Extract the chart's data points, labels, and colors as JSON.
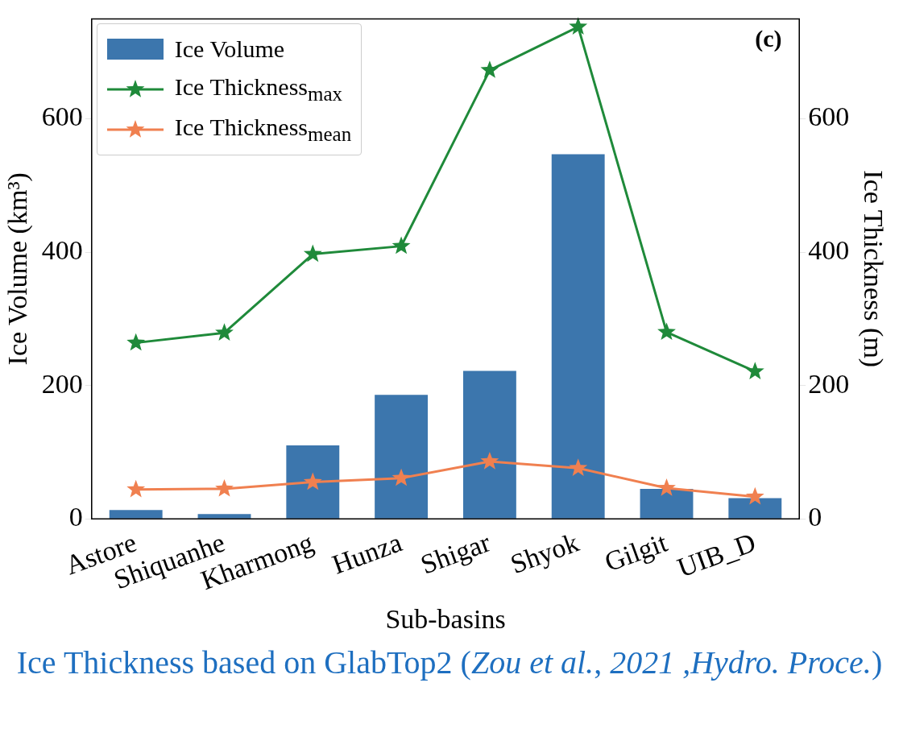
{
  "chart_data": {
    "type": "bar",
    "xlabel": "Sub-basins",
    "ylabel": "Ice Volume (km³)",
    "y2label": "Ice Thickness (m)",
    "categories": [
      "Astore",
      "Shiquanhe",
      "Kharmong",
      "Hunza",
      "Shigar",
      "Shyok",
      "Gilgit",
      "UIB_D"
    ],
    "series": [
      {
        "name": "Ice Volume",
        "color": "#3c76ad",
        "values": [
          13,
          7,
          110,
          186,
          222,
          547,
          45,
          31
        ]
      },
      {
        "name": "Ice Thickness$_{max}$",
        "type": "line",
        "axis": "y2",
        "marker": "star",
        "color": "#1f8a3a",
        "values": [
          264,
          279,
          397,
          409,
          673,
          738,
          280,
          221
        ]
      },
      {
        "name": "Ice Thickness$_{mean}$",
        "type": "line",
        "axis": "y2",
        "marker": "star",
        "color": "#f08050",
        "values": [
          44,
          45,
          55,
          61,
          86,
          76,
          46,
          33
        ]
      }
    ],
    "ylim": [
      0,
      750
    ],
    "yticks": [
      0,
      200,
      400,
      600
    ],
    "y2lim": [
      0,
      750
    ],
    "y2ticks": [
      0,
      200,
      400,
      600
    ],
    "grid": false,
    "legend": "top left",
    "annotations": [
      "(c)",
      "Ice Thickness based on GlabTop2 (*Zou et al.*, *2021 ,Hydro. Proce.*)"
    ]
  }
}
